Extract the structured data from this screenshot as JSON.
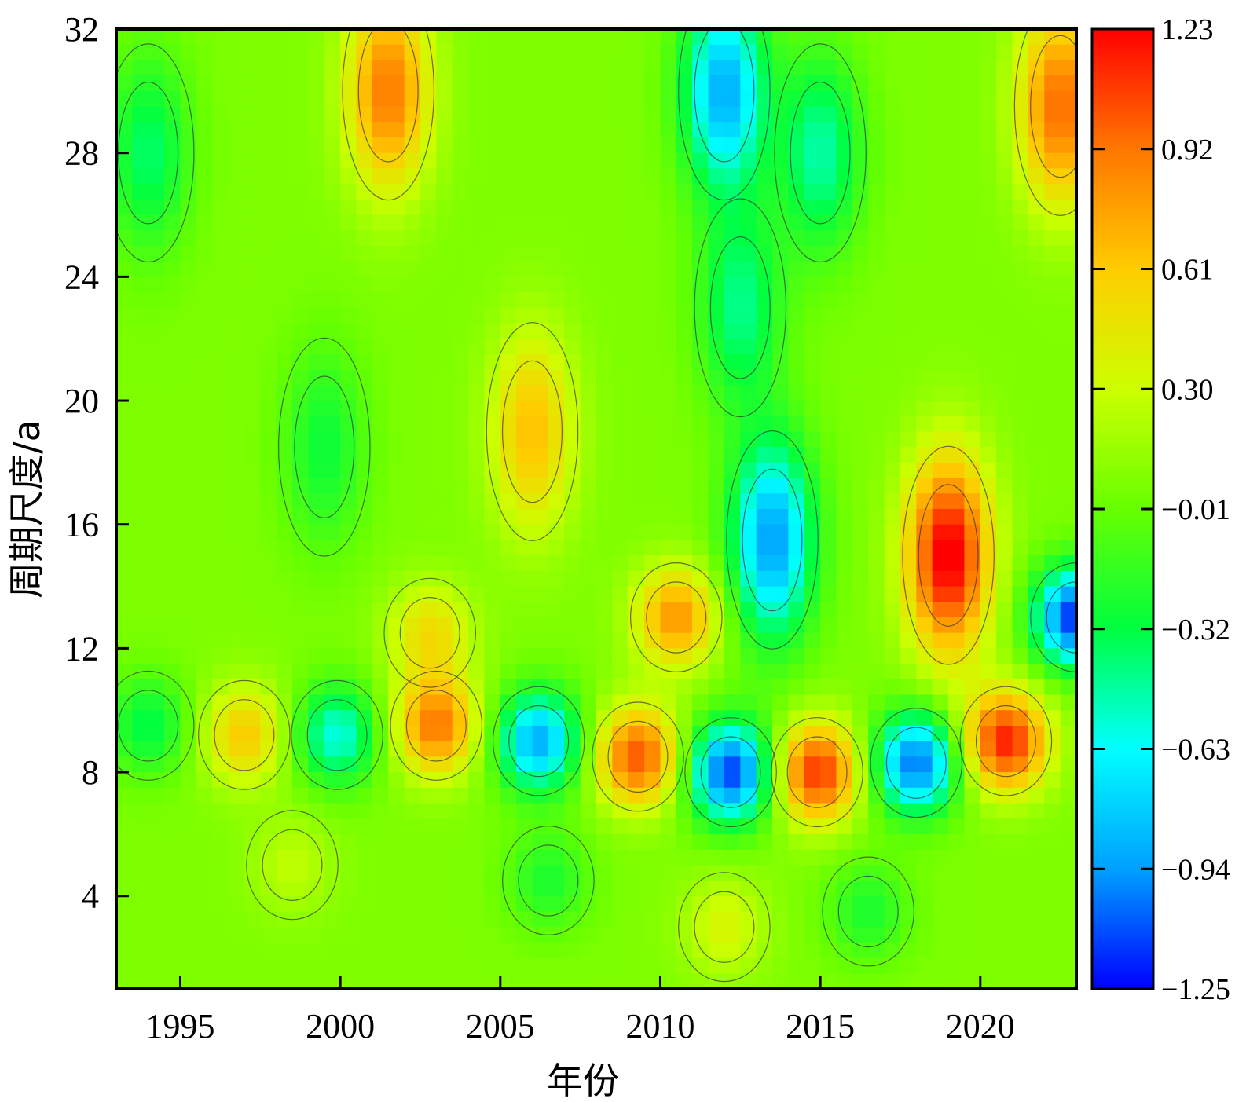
{
  "chart_data": {
    "type": "heatmap",
    "subtype": "filled-contour",
    "title": "",
    "xlabel": "年份",
    "ylabel": "周期尺度/a",
    "xlim": [
      1993,
      2023
    ],
    "ylim": [
      1,
      32
    ],
    "xticks": [
      1995,
      2000,
      2005,
      2010,
      2015,
      2020
    ],
    "yticks": [
      4,
      8,
      12,
      16,
      20,
      24,
      28,
      32
    ],
    "colorbar": {
      "min": -1.25,
      "max": 1.23,
      "ticks": [
        1.23,
        0.92,
        0.61,
        0.3,
        -0.01,
        -0.32,
        -0.63,
        -0.94,
        -1.25
      ],
      "tick_labels": [
        "1.23",
        "0.92",
        "0.61",
        "0.30",
        "−0.01",
        "−0.32",
        "−0.63",
        "−0.94",
        "−1.25"
      ],
      "colors": [
        "#0000ff",
        "#00a0ff",
        "#00ffff",
        "#00ff40",
        "#66ff00",
        "#ccff00",
        "#ffcc00",
        "#ff7700",
        "#ff0000"
      ]
    },
    "features": [
      {
        "year": 2001.5,
        "period": 30.0,
        "value": 0.85
      },
      {
        "year": 2012.0,
        "period": 30.0,
        "value": -0.95
      },
      {
        "year": 2022.5,
        "period": 29.5,
        "value": 0.9
      },
      {
        "year": 1994.0,
        "period": 28.0,
        "value": -0.45
      },
      {
        "year": 2015.0,
        "period": 28.0,
        "value": -0.55
      },
      {
        "year": 2012.5,
        "period": 23.0,
        "value": -0.5
      },
      {
        "year": 1999.5,
        "period": 18.5,
        "value": -0.35
      },
      {
        "year": 2006.0,
        "period": 19.0,
        "value": 0.6
      },
      {
        "year": 2013.5,
        "period": 15.5,
        "value": -1.0
      },
      {
        "year": 2019.0,
        "period": 15.0,
        "value": 1.23
      },
      {
        "year": 2023.0,
        "period": 13.0,
        "value": -1.25
      },
      {
        "year": 2010.5,
        "period": 13.0,
        "value": 0.75
      },
      {
        "year": 2020.8,
        "period": 9.0,
        "value": 1.1
      },
      {
        "year": 1994.0,
        "period": 9.5,
        "value": -0.4
      },
      {
        "year": 1997.0,
        "period": 9.2,
        "value": 0.55
      },
      {
        "year": 1999.9,
        "period": 9.2,
        "value": -0.65
      },
      {
        "year": 2003.0,
        "period": 9.5,
        "value": 0.85
      },
      {
        "year": 2006.2,
        "period": 9.0,
        "value": -0.95
      },
      {
        "year": 2009.3,
        "period": 8.5,
        "value": 0.95
      },
      {
        "year": 2012.2,
        "period": 8.0,
        "value": -1.2
      },
      {
        "year": 2014.9,
        "period": 8.0,
        "value": 1.05
      },
      {
        "year": 2018.0,
        "period": 8.3,
        "value": -1.1
      },
      {
        "year": 2002.8,
        "period": 12.5,
        "value": 0.45
      },
      {
        "year": 1998.5,
        "period": 5.0,
        "value": 0.2
      },
      {
        "year": 2006.5,
        "period": 4.5,
        "value": -0.3
      },
      {
        "year": 2012.0,
        "period": 3.0,
        "value": 0.3
      },
      {
        "year": 2016.5,
        "period": 3.5,
        "value": -0.3
      }
    ]
  }
}
